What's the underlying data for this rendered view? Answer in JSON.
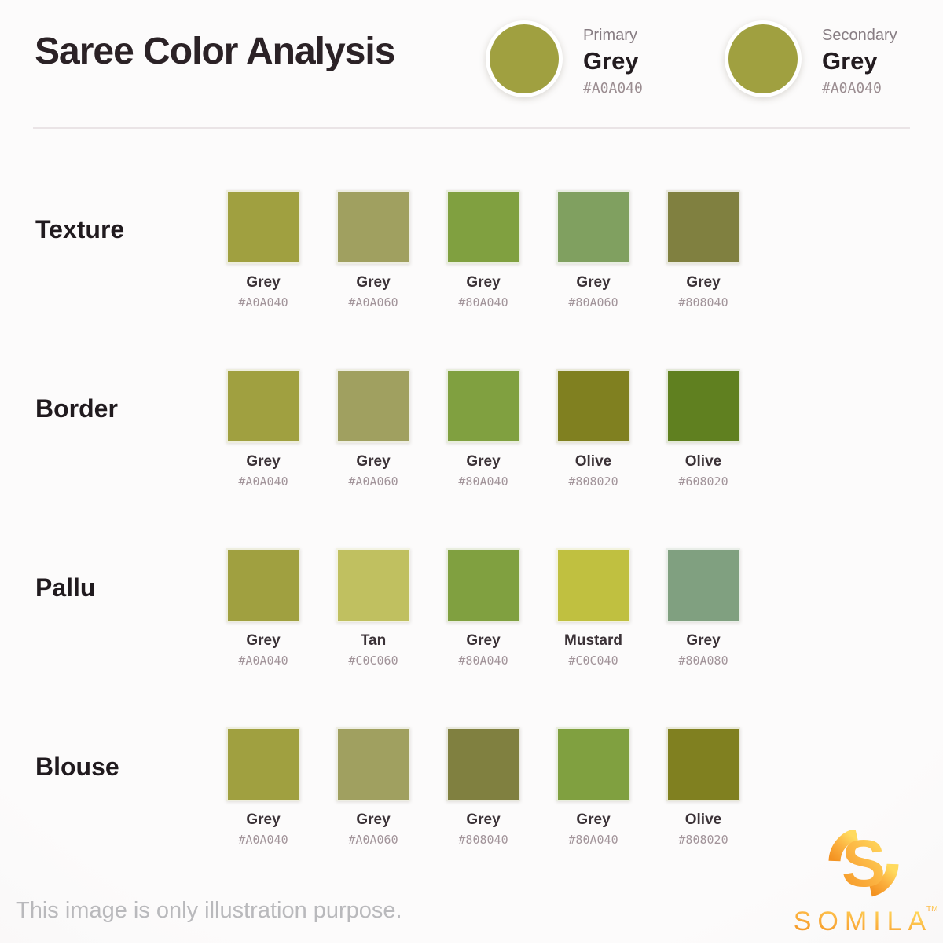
{
  "title": "Saree Color Analysis",
  "header": {
    "primary": {
      "label": "Primary",
      "name": "Grey",
      "hex": "#A0A040"
    },
    "secondary": {
      "label": "Secondary",
      "name": "Grey",
      "hex": "#A0A040"
    }
  },
  "rows": [
    {
      "label": "Texture",
      "swatches": [
        {
          "name": "Grey",
          "hex": "#A0A040"
        },
        {
          "name": "Grey",
          "hex": "#A0A060"
        },
        {
          "name": "Grey",
          "hex": "#80A040"
        },
        {
          "name": "Grey",
          "hex": "#80A060"
        },
        {
          "name": "Grey",
          "hex": "#808040"
        }
      ]
    },
    {
      "label": "Border",
      "swatches": [
        {
          "name": "Grey",
          "hex": "#A0A040"
        },
        {
          "name": "Grey",
          "hex": "#A0A060"
        },
        {
          "name": "Grey",
          "hex": "#80A040"
        },
        {
          "name": "Olive",
          "hex": "#808020"
        },
        {
          "name": "Olive",
          "hex": "#608020"
        }
      ]
    },
    {
      "label": "Pallu",
      "swatches": [
        {
          "name": "Grey",
          "hex": "#A0A040"
        },
        {
          "name": "Tan",
          "hex": "#C0C060"
        },
        {
          "name": "Grey",
          "hex": "#80A040"
        },
        {
          "name": "Mustard",
          "hex": "#C0C040"
        },
        {
          "name": "Grey",
          "hex": "#80A080"
        }
      ]
    },
    {
      "label": "Blouse",
      "swatches": [
        {
          "name": "Grey",
          "hex": "#A0A040"
        },
        {
          "name": "Grey",
          "hex": "#A0A060"
        },
        {
          "name": "Grey",
          "hex": "#808040"
        },
        {
          "name": "Grey",
          "hex": "#80A040"
        },
        {
          "name": "Olive",
          "hex": "#808020"
        }
      ]
    }
  ],
  "footer": {
    "disclaimer": "This image is only illustration purpose.",
    "brand": "SOMILA",
    "brand_tm": "TM"
  },
  "colors": {
    "logo_gradient_start": "#F39221",
    "logo_gradient_mid": "#FBB03F",
    "logo_gradient_end": "#FFDA5E",
    "divider": "#EAE4E6",
    "title_text": "#2B2226",
    "muted_label": "#877D83",
    "hex_text": "#9B8D91",
    "disclaimer_text": "#B9B9BC"
  }
}
